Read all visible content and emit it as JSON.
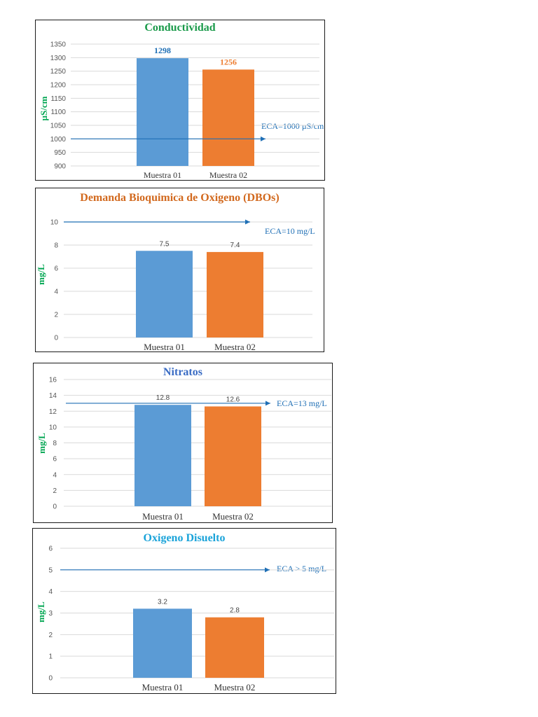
{
  "chart_data": [
    {
      "type": "bar",
      "title": "Conductividad",
      "ylabel": "µS/cm",
      "categories": [
        "Muestra 01",
        "Muestra 02"
      ],
      "values": [
        1298,
        1256
      ],
      "data_labels": [
        "1298",
        "1256"
      ],
      "ylim": [
        900,
        1350
      ],
      "yticks": [
        900,
        950,
        1000,
        1050,
        1100,
        1150,
        1200,
        1250,
        1300,
        1350
      ],
      "reference": {
        "value": 1000,
        "label": "ECA=1000 µS/cm"
      },
      "grid": true,
      "colors": {
        "title": "#1a9a4a",
        "bars": [
          "#5b9bd5",
          "#ed7d31"
        ],
        "labels": [
          "#1f6fb5",
          "#ed7d31"
        ]
      }
    },
    {
      "type": "bar",
      "title": "Demanda Bioquimica de Oxigeno (DBOs)",
      "ylabel": "mg/L",
      "categories": [
        "Muestra 01",
        "Muestra 02"
      ],
      "values": [
        7.5,
        7.4
      ],
      "data_labels": [
        "7.5",
        "7.4"
      ],
      "ylim": [
        0,
        10
      ],
      "yticks": [
        0,
        2,
        4,
        6,
        8,
        10
      ],
      "reference": {
        "value": 10,
        "label": "ECA=10 mg/L"
      },
      "grid": true,
      "colors": {
        "title": "#d2691e",
        "bars": [
          "#5b9bd5",
          "#ed7d31"
        ],
        "labels": [
          "#444444",
          "#444444"
        ]
      }
    },
    {
      "type": "bar",
      "title": "Nitratos",
      "ylabel": "mg/L",
      "categories": [
        "Muestra 01",
        "Muestra 02"
      ],
      "values": [
        12.8,
        12.6
      ],
      "data_labels": [
        "12.8",
        "12.6"
      ],
      "ylim": [
        0,
        16
      ],
      "yticks": [
        0,
        2,
        4,
        6,
        8,
        10,
        12,
        14,
        16
      ],
      "reference": {
        "value": 13,
        "label": "ECA=13 mg/L"
      },
      "grid": true,
      "colors": {
        "title": "#3a6cc4",
        "bars": [
          "#5b9bd5",
          "#ed7d31"
        ],
        "labels": [
          "#444444",
          "#444444"
        ]
      }
    },
    {
      "type": "bar",
      "title": "Oxigeno Disuelto",
      "ylabel": "mg/L",
      "categories": [
        "Muestra 01",
        "Muestra 02"
      ],
      "values": [
        3.2,
        2.8
      ],
      "data_labels": [
        "3.2",
        "2.8"
      ],
      "ylim": [
        0,
        6
      ],
      "yticks": [
        0,
        1,
        2,
        3,
        4,
        5,
        6
      ],
      "reference": {
        "value": 5,
        "label": "ECA > 5 mg/L"
      },
      "grid": true,
      "colors": {
        "title": "#1aa3d9",
        "bars": [
          "#5b9bd5",
          "#ed7d31"
        ],
        "labels": [
          "#444444",
          "#444444"
        ]
      }
    }
  ]
}
